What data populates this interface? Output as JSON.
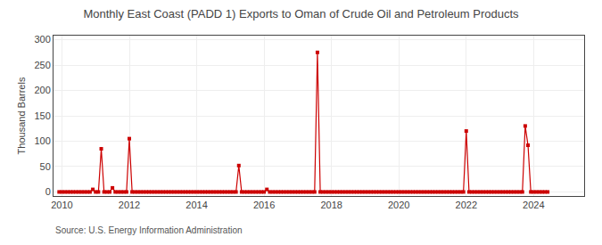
{
  "chart_data": {
    "type": "line",
    "title": "Monthly East Coast (PADD 1) Exports to Oman of Crude Oil and Petroleum Products",
    "ylabel": "Thousand Barrels",
    "annotations": [
      "Source: U.S. Energy Information Administration"
    ],
    "x": [
      2009.917,
      2010,
      2010.083,
      2010.167,
      2010.25,
      2010.333,
      2010.417,
      2010.5,
      2010.583,
      2010.667,
      2010.75,
      2010.833,
      2010.917,
      2011,
      2011.083,
      2011.167,
      2011.25,
      2011.333,
      2011.417,
      2011.5,
      2011.583,
      2011.667,
      2011.75,
      2011.833,
      2011.917,
      2012,
      2012.083,
      2012.167,
      2012.25,
      2012.333,
      2012.417,
      2012.5,
      2012.583,
      2012.667,
      2012.75,
      2012.833,
      2012.917,
      2013,
      2013.083,
      2013.167,
      2013.25,
      2013.333,
      2013.417,
      2013.5,
      2013.583,
      2013.667,
      2013.75,
      2013.833,
      2013.917,
      2014,
      2014.083,
      2014.167,
      2014.25,
      2014.333,
      2014.417,
      2014.5,
      2014.583,
      2014.667,
      2014.75,
      2014.833,
      2014.917,
      2015,
      2015.083,
      2015.167,
      2015.25,
      2015.333,
      2015.417,
      2015.5,
      2015.583,
      2015.667,
      2015.75,
      2015.833,
      2015.917,
      2016,
      2016.083,
      2016.167,
      2016.25,
      2016.333,
      2016.417,
      2016.5,
      2016.583,
      2016.667,
      2016.75,
      2016.833,
      2016.917,
      2017,
      2017.083,
      2017.167,
      2017.25,
      2017.333,
      2017.417,
      2017.5,
      2017.583,
      2017.667,
      2017.75,
      2017.833,
      2017.917,
      2018,
      2018.083,
      2018.167,
      2018.25,
      2018.333,
      2018.417,
      2018.5,
      2018.583,
      2018.667,
      2018.75,
      2018.833,
      2018.917,
      2019,
      2019.083,
      2019.167,
      2019.25,
      2019.333,
      2019.417,
      2019.5,
      2019.583,
      2019.667,
      2019.75,
      2019.833,
      2019.917,
      2020,
      2020.083,
      2020.167,
      2020.25,
      2020.333,
      2020.417,
      2020.5,
      2020.583,
      2020.667,
      2020.75,
      2020.833,
      2020.917,
      2021,
      2021.083,
      2021.167,
      2021.25,
      2021.333,
      2021.417,
      2021.5,
      2021.583,
      2021.667,
      2021.75,
      2021.833,
      2021.917,
      2022,
      2022.083,
      2022.167,
      2022.25,
      2022.333,
      2022.417,
      2022.5,
      2022.583,
      2022.667,
      2022.75,
      2022.833,
      2022.917,
      2023,
      2023.083,
      2023.167,
      2023.25,
      2023.333,
      2023.417,
      2023.5,
      2023.583,
      2023.667,
      2023.75,
      2023.833,
      2023.917,
      2024,
      2024.083,
      2024.167,
      2024.25,
      2024.333,
      2024.417
    ],
    "values": [
      0,
      0,
      0,
      0,
      0,
      0,
      0,
      0,
      0,
      0,
      0,
      0,
      5,
      0,
      0,
      85,
      0,
      0,
      0,
      8,
      0,
      0,
      0,
      0,
      0,
      105,
      0,
      0,
      0,
      0,
      0,
      0,
      0,
      0,
      0,
      0,
      0,
      0,
      0,
      0,
      0,
      0,
      0,
      0,
      0,
      0,
      0,
      0,
      0,
      0,
      0,
      0,
      0,
      0,
      0,
      0,
      0,
      0,
      0,
      0,
      0,
      0,
      0,
      0,
      52,
      0,
      0,
      0,
      0,
      0,
      0,
      0,
      0,
      0,
      5,
      0,
      0,
      0,
      0,
      0,
      0,
      0,
      0,
      0,
      0,
      0,
      0,
      0,
      0,
      0,
      0,
      0,
      275,
      0,
      0,
      0,
      0,
      0,
      0,
      0,
      0,
      0,
      0,
      0,
      0,
      0,
      0,
      0,
      0,
      0,
      0,
      0,
      0,
      0,
      0,
      0,
      0,
      0,
      0,
      0,
      0,
      0,
      0,
      0,
      0,
      0,
      0,
      0,
      0,
      0,
      0,
      0,
      0,
      0,
      0,
      0,
      0,
      0,
      0,
      0,
      0,
      0,
      0,
      0,
      0,
      120,
      0,
      0,
      0,
      0,
      0,
      0,
      0,
      0,
      0,
      0,
      0,
      0,
      0,
      0,
      0,
      0,
      0,
      0,
      0,
      0,
      130,
      92,
      0,
      0,
      0,
      0,
      0,
      0,
      0
    ],
    "color": "#cc0000",
    "marker": "square",
    "line_style": "solid",
    "xlim": [
      2009.75,
      2025.5
    ],
    "xticks": [
      2010,
      2012,
      2014,
      2016,
      2018,
      2020,
      2022,
      2024
    ],
    "ylim": [
      -8,
      308
    ],
    "yticks": [
      0,
      50,
      100,
      150,
      200,
      250,
      300
    ],
    "grid": true
  }
}
